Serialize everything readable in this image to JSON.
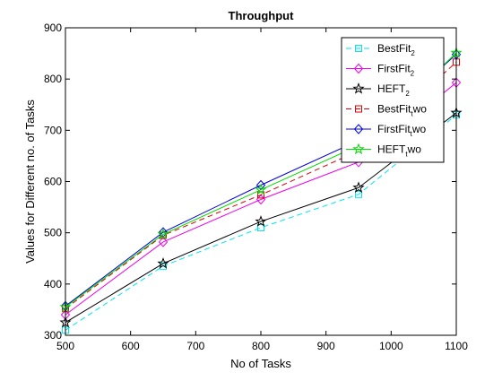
{
  "chart_data": {
    "type": "line",
    "title": "Throughput",
    "xlabel": "No of Tasks",
    "ylabel": "Values for Different no. of Tasks",
    "x": [
      500,
      650,
      800,
      950,
      1100
    ],
    "xlim": [
      500,
      1100
    ],
    "ylim": [
      300,
      900
    ],
    "xticks": [
      500,
      600,
      700,
      800,
      900,
      1000,
      1100
    ],
    "yticks": [
      300,
      400,
      500,
      600,
      700,
      800,
      900
    ],
    "grid": false,
    "legend_position": "top-right",
    "series": [
      {
        "name": "BestFit2",
        "legend_main": "BestFit",
        "legend_sub": "2",
        "legend_tail": "",
        "color": "#00e5ee",
        "dash": "dashed",
        "marker": "square",
        "values": [
          310,
          435,
          510,
          575,
          730
        ]
      },
      {
        "name": "FirstFit2",
        "legend_main": "FirstFit",
        "legend_sub": "2",
        "legend_tail": "",
        "color": "#ee00ee",
        "dash": "solid",
        "marker": "diamond",
        "values": [
          340,
          482,
          565,
          638,
          793
        ]
      },
      {
        "name": "HEFT2",
        "legend_main": "HEFT",
        "legend_sub": "2",
        "legend_tail": "",
        "color": "#000000",
        "dash": "solid",
        "marker": "star",
        "values": [
          325,
          440,
          522,
          588,
          734
        ]
      },
      {
        "name": "BestFittwo",
        "legend_main": "BestFit",
        "legend_sub": "t",
        "legend_tail": "wo",
        "color": "#dd0000",
        "dash": "dashed",
        "marker": "square",
        "values": [
          352,
          495,
          574,
          660,
          833
        ]
      },
      {
        "name": "FirstFittwo",
        "legend_main": "FirstFit",
        "legend_sub": "t",
        "legend_tail": "wo",
        "color": "#0000dd",
        "dash": "solid",
        "marker": "diamond",
        "values": [
          357,
          501,
          593,
          680,
          848
        ]
      },
      {
        "name": "HEFTtwo",
        "legend_main": "HEFT",
        "legend_sub": "t",
        "legend_tail": "wo",
        "color": "#00dd00",
        "dash": "solid",
        "marker": "star",
        "values": [
          355,
          497,
          584,
          670,
          851
        ]
      }
    ]
  }
}
